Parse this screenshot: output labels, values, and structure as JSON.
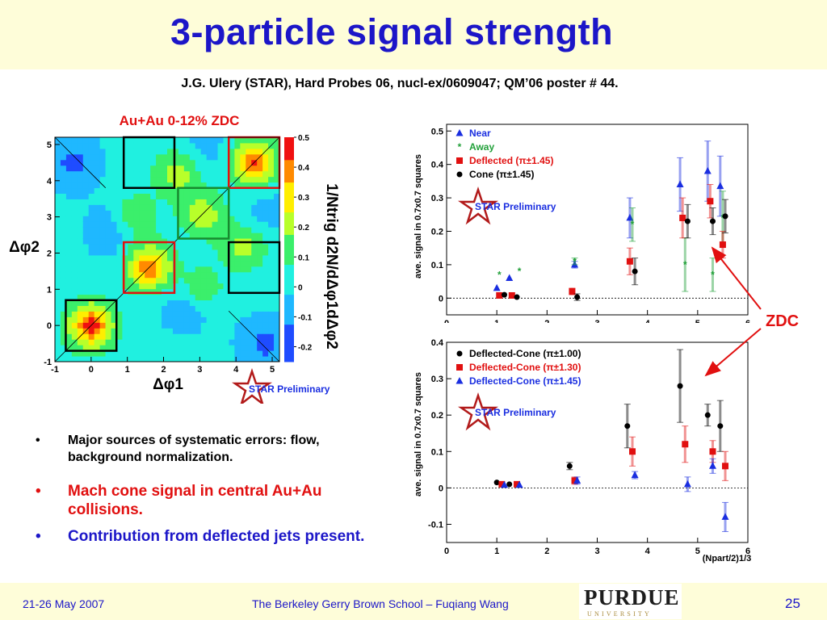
{
  "slide": {
    "title": "3-particle signal strength",
    "citation": "J.G. Ulery (STAR), Hard Probes 06, nucl-ex/0609047; QM’06 poster # 44.",
    "bullets": [
      "Major sources of systematic errors: flow, background normalization.",
      "Mach cone signal in central Au+Au collisions.",
      "Contribution from deflected jets present."
    ],
    "bullet_glyph": "•",
    "zdc_label": "ZDC",
    "footer": {
      "date": "21-26 May 2007",
      "center": "The Berkeley Gerry Brown School – Fuqiang Wang",
      "page": "25"
    },
    "logo": {
      "name": "PURDUE",
      "sub": "UNIVERSITY"
    },
    "star_logo_text": "STAR Preliminary",
    "colors": {
      "title_blue": "#1c16c8",
      "red": "#e11010",
      "cream": "#fefdd9"
    }
  },
  "chart_data": [
    {
      "type": "heatmap",
      "title": "Au+Au 0-12% ZDC",
      "xlabel": "Δφ1",
      "ylabel": "Δφ2",
      "zlabel": "1/Ntrig d2N/dΔφ1dΔφ2",
      "xlim": [
        -1,
        5.2
      ],
      "ylim": [
        -1,
        5.2
      ],
      "zlim": [
        -0.25,
        0.5
      ],
      "x_ticks": [
        "-1",
        "0",
        "1",
        "2",
        "3",
        "4",
        "5"
      ],
      "y_ticks": [
        "-1",
        "0",
        "1",
        "2",
        "3",
        "4",
        "5"
      ],
      "z_ticks": [
        "-0.2",
        "-0.1",
        "0",
        "0.1",
        "0.2",
        "0.3",
        "0.4",
        "0.5"
      ],
      "hot_spots": [
        {
          "x": 0,
          "y": 0,
          "z": 0.45
        },
        {
          "x": 1.6,
          "y": 1.6,
          "z": 0.4
        },
        {
          "x": 4.5,
          "y": 4.5,
          "z": 0.42
        },
        {
          "x": 2.4,
          "y": 4.2,
          "z": 0.2
        },
        {
          "x": 4.2,
          "y": 2.2,
          "z": 0.18
        },
        {
          "x": 1.2,
          "y": 3.0,
          "z": 0.15
        },
        {
          "x": 3.0,
          "y": 1.0,
          "z": 0.15
        },
        {
          "x": 3.1,
          "y": 3.1,
          "z": 0.2
        }
      ],
      "cold_spots": [
        {
          "x": -0.5,
          "y": 4.5,
          "z": -0.18
        },
        {
          "x": 4.8,
          "y": -0.5,
          "z": -0.18
        },
        {
          "x": 0.5,
          "y": 2.6,
          "z": -0.12
        },
        {
          "x": 2.6,
          "y": 0.5,
          "z": -0.12
        },
        {
          "x": 3.2,
          "y": 4.9,
          "z": -0.08
        },
        {
          "x": 4.9,
          "y": 3.2,
          "z": -0.08
        }
      ],
      "boxes": [
        {
          "x": 0,
          "y": 0,
          "color": "black"
        },
        {
          "x": 1.6,
          "y": 1.6,
          "color": "red"
        },
        {
          "x": 4.5,
          "y": 4.5,
          "color": "red"
        },
        {
          "x": 3.1,
          "y": 3.1,
          "color": "green"
        },
        {
          "x": 1.6,
          "y": 4.5,
          "color": "black"
        },
        {
          "x": 4.5,
          "y": 1.6,
          "color": "black"
        }
      ]
    },
    {
      "type": "scatter",
      "xlabel": "",
      "ylabel": "ave. signal in 0.7x0.7 squares",
      "xlim": [
        0,
        6
      ],
      "ylim": [
        -0.05,
        0.52
      ],
      "x_ticks": [
        "0",
        "1",
        "2",
        "3",
        "4",
        "5",
        "6"
      ],
      "y_ticks": [
        "0",
        "0.1",
        "0.2",
        "0.3",
        "0.4",
        "0.5"
      ],
      "series": [
        {
          "name": "Near",
          "color": "#1a2ee0",
          "marker": "triangle",
          "points": [
            {
              "x": 1.0,
              "y": 0.03,
              "sys": 0.0
            },
            {
              "x": 1.25,
              "y": 0.06,
              "sys": 0.0
            },
            {
              "x": 2.55,
              "y": 0.1,
              "sys": 0.01
            },
            {
              "x": 3.65,
              "y": 0.24,
              "sys": 0.06
            },
            {
              "x": 4.65,
              "y": 0.34,
              "sys": 0.08
            },
            {
              "x": 5.2,
              "y": 0.38,
              "sys": 0.09
            },
            {
              "x": 5.45,
              "y": 0.335,
              "sys": 0.09
            }
          ]
        },
        {
          "name": "Away",
          "color": "#22a03a",
          "marker": "star",
          "points": [
            {
              "x": 1.05,
              "y": 0.07,
              "sys": 0.0
            },
            {
              "x": 1.45,
              "y": 0.08,
              "sys": 0.0
            },
            {
              "x": 2.55,
              "y": 0.11,
              "sys": 0.01
            },
            {
              "x": 3.7,
              "y": 0.22,
              "sys": 0.05
            },
            {
              "x": 4.75,
              "y": 0.1,
              "sys": 0.08
            },
            {
              "x": 5.3,
              "y": 0.07,
              "sys": 0.05
            },
            {
              "x": 5.5,
              "y": 0.24,
              "sys": 0.08
            }
          ]
        },
        {
          "name": "Deflected (π±1.45)",
          "color": "#e11010",
          "marker": "square",
          "points": [
            {
              "x": 1.05,
              "y": 0.008,
              "sys": 0.0
            },
            {
              "x": 1.3,
              "y": 0.008,
              "sys": 0.0
            },
            {
              "x": 2.5,
              "y": 0.02,
              "sys": 0.01
            },
            {
              "x": 3.65,
              "y": 0.11,
              "sys": 0.04
            },
            {
              "x": 4.7,
              "y": 0.24,
              "sys": 0.06
            },
            {
              "x": 5.25,
              "y": 0.29,
              "sys": 0.05
            },
            {
              "x": 5.5,
              "y": 0.16,
              "sys": 0.04
            }
          ]
        },
        {
          "name": "Cone (π±1.45)",
          "color": "#000000",
          "marker": "circle",
          "points": [
            {
              "x": 1.15,
              "y": 0.01,
              "sys": 0.0
            },
            {
              "x": 1.4,
              "y": 0.003,
              "sys": 0.0
            },
            {
              "x": 2.6,
              "y": 0.003,
              "sys": 0.01
            },
            {
              "x": 3.75,
              "y": 0.08,
              "sys": 0.04
            },
            {
              "x": 4.8,
              "y": 0.23,
              "sys": 0.05
            },
            {
              "x": 5.3,
              "y": 0.23,
              "sys": 0.04
            },
            {
              "x": 5.55,
              "y": 0.245,
              "sys": 0.05
            }
          ]
        }
      ]
    },
    {
      "type": "scatter",
      "xlabel": "(Npart/2)1/3",
      "ylabel": "ave. signal in 0.7x0.7 squares",
      "xlim": [
        0,
        6
      ],
      "ylim": [
        -0.15,
        0.4
      ],
      "x_ticks": [
        "0",
        "1",
        "2",
        "3",
        "4",
        "5",
        "6"
      ],
      "y_ticks": [
        "-0.1",
        "0",
        "0.1",
        "0.2",
        "0.3",
        "0.4"
      ],
      "series": [
        {
          "name": "Deflected-Cone (π±1.00)",
          "color": "#000000",
          "marker": "circle",
          "points": [
            {
              "x": 1.0,
              "y": 0.015,
              "sys": 0.0
            },
            {
              "x": 1.25,
              "y": 0.01,
              "sys": 0.0
            },
            {
              "x": 2.45,
              "y": 0.06,
              "sys": 0.01
            },
            {
              "x": 3.6,
              "y": 0.17,
              "sys": 0.06
            },
            {
              "x": 4.65,
              "y": 0.28,
              "sys": 0.1
            },
            {
              "x": 5.2,
              "y": 0.2,
              "sys": 0.03
            },
            {
              "x": 5.45,
              "y": 0.17,
              "sys": 0.07
            }
          ]
        },
        {
          "name": "Deflected-Cone (π±1.30)",
          "color": "#e11010",
          "marker": "square",
          "points": [
            {
              "x": 1.1,
              "y": 0.01,
              "sys": 0.0
            },
            {
              "x": 1.4,
              "y": 0.01,
              "sys": 0.0
            },
            {
              "x": 2.55,
              "y": 0.02,
              "sys": 0.01
            },
            {
              "x": 3.7,
              "y": 0.1,
              "sys": 0.04
            },
            {
              "x": 4.75,
              "y": 0.12,
              "sys": 0.05
            },
            {
              "x": 5.3,
              "y": 0.1,
              "sys": 0.03
            },
            {
              "x": 5.55,
              "y": 0.06,
              "sys": 0.04
            }
          ]
        },
        {
          "name": "Deflected-Cone (π±1.45)",
          "color": "#1a2ee0",
          "marker": "triangle",
          "points": [
            {
              "x": 1.15,
              "y": 0.008,
              "sys": 0.0
            },
            {
              "x": 1.45,
              "y": 0.008,
              "sys": 0.0
            },
            {
              "x": 2.6,
              "y": 0.02,
              "sys": 0.01
            },
            {
              "x": 3.75,
              "y": 0.035,
              "sys": 0.01
            },
            {
              "x": 4.8,
              "y": 0.01,
              "sys": 0.02
            },
            {
              "x": 5.3,
              "y": 0.06,
              "sys": 0.02
            },
            {
              "x": 5.55,
              "y": -0.08,
              "sys": 0.04
            }
          ]
        }
      ]
    }
  ]
}
